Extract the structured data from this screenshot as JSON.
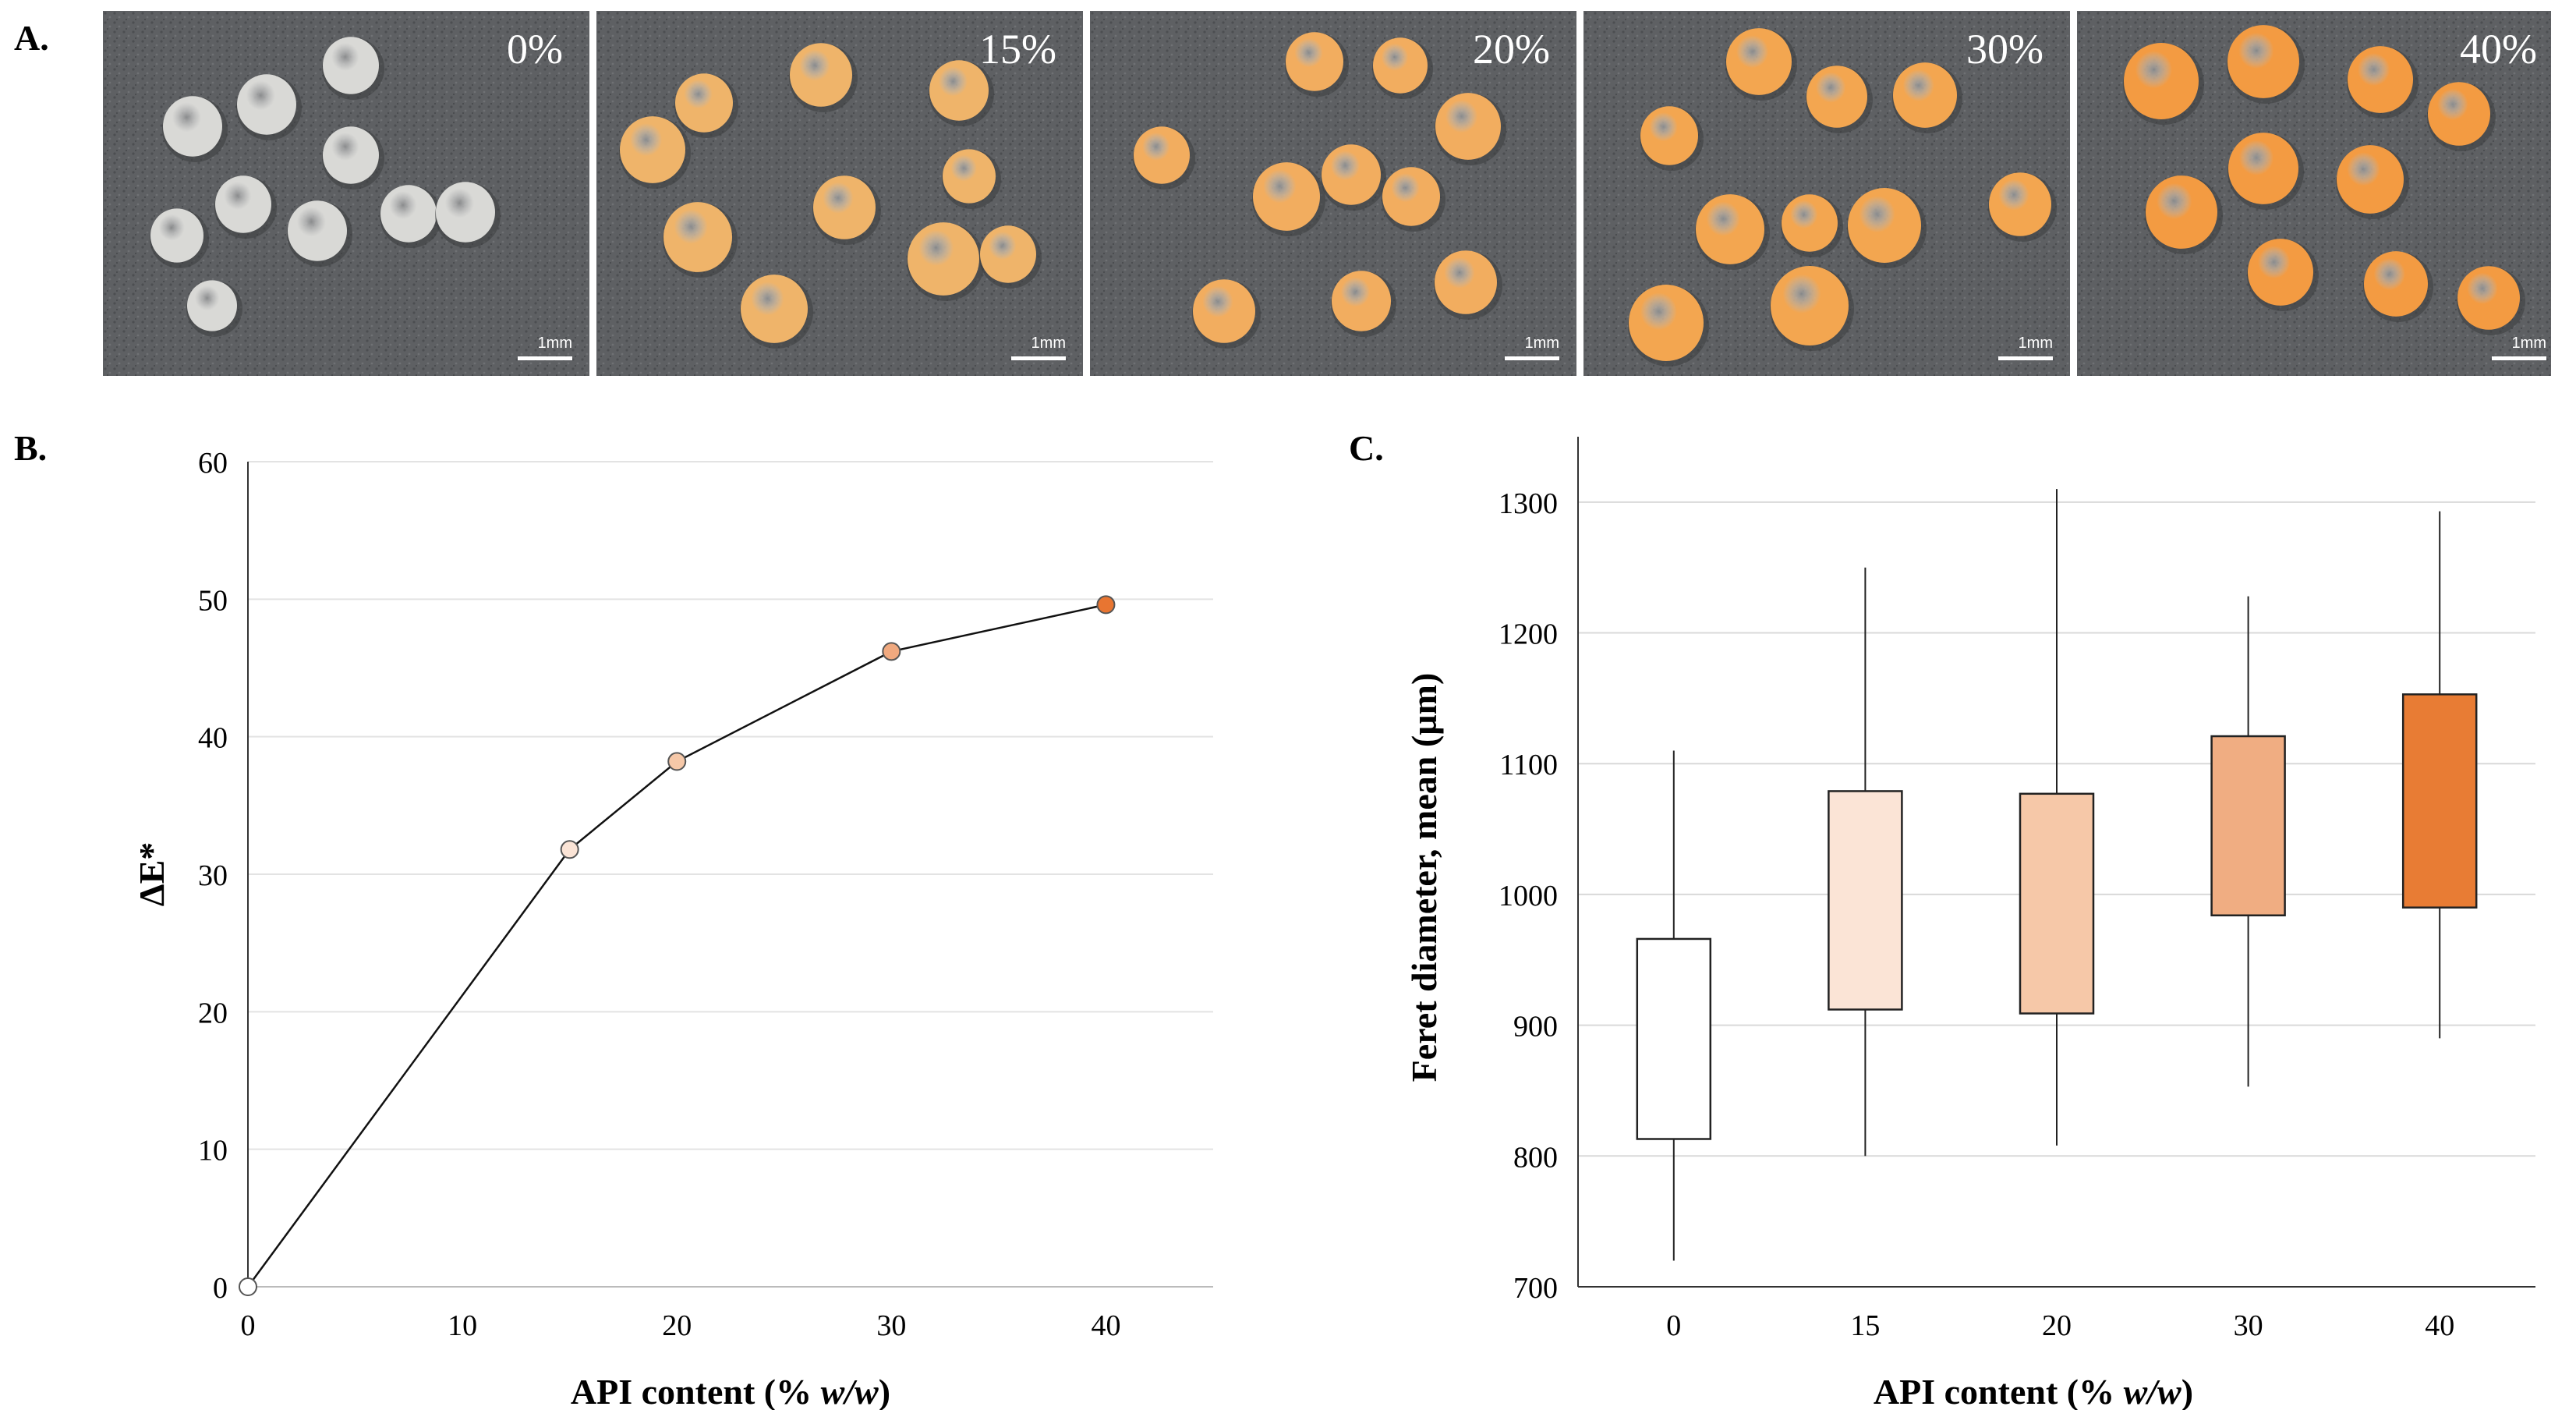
{
  "panel_labels": {
    "a": "A.",
    "b": "B.",
    "c": "C."
  },
  "photos": [
    {
      "label": "0%",
      "scale": "1mm",
      "bead_color": "#d9d9d6"
    },
    {
      "label": "15%",
      "scale": "1mm",
      "bead_color": "#efb46a"
    },
    {
      "label": "20%",
      "scale": "1mm",
      "bead_color": "#f2ad5f"
    },
    {
      "label": "30%",
      "scale": "1mm",
      "bead_color": "#f3a650"
    },
    {
      "label": "40%",
      "scale": "1mm",
      "bead_color": "#f39b42"
    }
  ],
  "chart_data": [
    {
      "type": "line",
      "title": "",
      "xlabel": "API content (% w/w)",
      "ylabel": "ΔE*",
      "xlim": [
        0,
        45
      ],
      "ylim": [
        0,
        60
      ],
      "xticks": [
        0,
        10,
        20,
        30,
        40
      ],
      "yticks": [
        0,
        10,
        20,
        30,
        40,
        50,
        60
      ],
      "grid": "horizontal",
      "series": [
        {
          "name": "ΔE*",
          "x": [
            0,
            15,
            20,
            30,
            40
          ],
          "y": [
            0,
            31.8,
            38.2,
            46.2,
            49.6
          ],
          "marker_colors": [
            "#ffffff",
            "#fbe4d6",
            "#f6c8a8",
            "#f0a97f",
            "#e87531"
          ]
        }
      ]
    },
    {
      "type": "box",
      "title": "",
      "xlabel": "API content (% w/w)",
      "ylabel": "Feret diameter, mean (µm)",
      "ylim": [
        700,
        1350
      ],
      "yticks": [
        700,
        800,
        900,
        1000,
        1100,
        1200,
        1300
      ],
      "grid": "horizontal",
      "categories": [
        "0",
        "15",
        "20",
        "30",
        "40"
      ],
      "boxes": [
        {
          "min": 720,
          "q1": 813,
          "q3": 966,
          "max": 1110,
          "color": "#ffffff"
        },
        {
          "min": 800,
          "q1": 912,
          "q3": 1079,
          "max": 1250,
          "color": "#fbe4d6"
        },
        {
          "min": 808,
          "q1": 909,
          "q3": 1077,
          "max": 1310,
          "color": "#f6c8a8"
        },
        {
          "min": 853,
          "q1": 984,
          "q3": 1121,
          "max": 1228,
          "color": "#f0ad82"
        },
        {
          "min": 890,
          "q1": 990,
          "q3": 1153,
          "max": 1293,
          "color": "#e87c34"
        }
      ]
    }
  ]
}
